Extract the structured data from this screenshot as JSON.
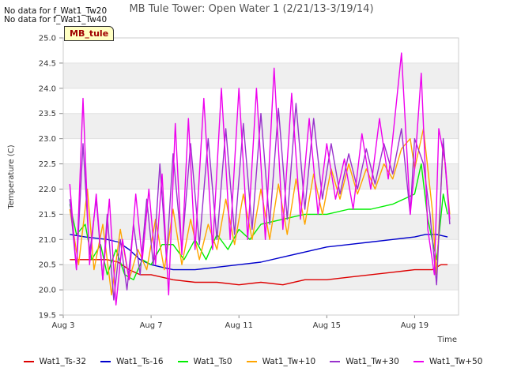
{
  "notes": [
    "No data for f_Wat1_Tw20",
    "No data for f_Wat1_Tw40"
  ],
  "site_label": "MB_tule",
  "chart_data": {
    "type": "line",
    "title": "MB Tule Tower: Open Water 1 (2/21/13-3/19/14)",
    "xlabel": "Time",
    "ylabel": "Temperature (C)",
    "xlim": [
      3,
      21
    ],
    "ylim": [
      19.5,
      25.0
    ],
    "x_ticks": [
      {
        "value": 3,
        "label": "Aug 3"
      },
      {
        "value": 7,
        "label": "Aug 7"
      },
      {
        "value": 11,
        "label": "Aug 11"
      },
      {
        "value": 15,
        "label": "Aug 15"
      },
      {
        "value": 19,
        "label": "Aug 19"
      }
    ],
    "y_ticks": [
      19.5,
      20.0,
      20.5,
      21.0,
      21.5,
      22.0,
      22.5,
      23.0,
      23.5,
      24.0,
      24.5,
      25.0
    ],
    "y_tick_labels": [
      "19.5",
      "20.0",
      "20.5",
      "21.0",
      "21.5",
      "22.0",
      "22.5",
      "23.0",
      "23.5",
      "24.0",
      "24.5",
      "25.0"
    ],
    "grid": true,
    "legend_position": "bottom",
    "series": [
      {
        "name": "Wat1_Ts-32",
        "color": "#dd0000",
        "x": [
          3.3,
          4.0,
          5.0,
          5.5,
          6.0,
          6.5,
          7.0,
          7.5,
          8.0,
          9.0,
          10.0,
          11.0,
          12.0,
          13.0,
          14.0,
          15.0,
          16.0,
          17.0,
          18.0,
          19.0,
          19.8,
          20.2,
          20.5
        ],
        "y": [
          20.6,
          20.6,
          20.6,
          20.55,
          20.4,
          20.3,
          20.3,
          20.25,
          20.2,
          20.15,
          20.15,
          20.1,
          20.15,
          20.1,
          20.2,
          20.2,
          20.25,
          20.3,
          20.35,
          20.4,
          20.4,
          20.5,
          20.5
        ]
      },
      {
        "name": "Wat1_Ts-16",
        "color": "#0000cc",
        "x": [
          3.3,
          4.0,
          5.0,
          5.5,
          6.0,
          6.5,
          7.0,
          7.5,
          8.0,
          9.0,
          10.0,
          11.0,
          12.0,
          13.0,
          14.0,
          15.0,
          16.0,
          17.0,
          18.0,
          19.0,
          19.5,
          20.0,
          20.5
        ],
        "y": [
          21.1,
          21.05,
          21.0,
          20.95,
          20.8,
          20.6,
          20.5,
          20.45,
          20.4,
          20.4,
          20.45,
          20.5,
          20.55,
          20.65,
          20.75,
          20.85,
          20.9,
          20.95,
          21.0,
          21.05,
          21.1,
          21.1,
          21.05
        ]
      },
      {
        "name": "Wat1_Ts0",
        "color": "#00ee00",
        "x": [
          3.3,
          3.6,
          4.0,
          4.3,
          4.7,
          5.0,
          5.4,
          5.8,
          6.2,
          6.6,
          7.0,
          7.5,
          8.0,
          8.5,
          9.0,
          9.5,
          10.0,
          10.5,
          11.0,
          11.5,
          12.0,
          13.0,
          14.0,
          15.0,
          16.0,
          17.0,
          18.0,
          18.5,
          19.0,
          19.3,
          19.6,
          20.0,
          20.3,
          20.5
        ],
        "y": [
          21.7,
          21.1,
          21.3,
          20.6,
          20.9,
          20.3,
          20.8,
          20.3,
          20.2,
          20.6,
          20.5,
          20.9,
          20.9,
          20.6,
          21.0,
          20.6,
          21.1,
          20.8,
          21.2,
          21.0,
          21.3,
          21.4,
          21.5,
          21.5,
          21.6,
          21.6,
          21.7,
          21.8,
          21.9,
          22.5,
          21.4,
          20.6,
          21.9,
          21.5
        ]
      },
      {
        "name": "Wat1_Tw+10",
        "color": "#ffa500",
        "x": [
          3.3,
          3.7,
          4.1,
          4.4,
          4.8,
          5.2,
          5.6,
          6.0,
          6.4,
          6.8,
          7.2,
          7.6,
          8.0,
          8.4,
          8.8,
          9.2,
          9.6,
          10.0,
          10.4,
          10.8,
          11.2,
          11.6,
          12.0,
          12.4,
          12.8,
          13.2,
          13.6,
          14.0,
          14.4,
          14.8,
          15.2,
          15.6,
          16.0,
          16.4,
          16.8,
          17.2,
          17.6,
          18.0,
          18.4,
          18.8,
          19.0,
          19.4,
          19.8,
          20.0,
          20.3,
          20.6
        ],
        "y": [
          21.6,
          20.5,
          22.0,
          20.4,
          21.3,
          19.9,
          21.2,
          20.2,
          20.8,
          20.4,
          21.4,
          20.4,
          21.6,
          20.5,
          21.4,
          20.6,
          21.3,
          20.8,
          21.8,
          20.9,
          21.9,
          21.0,
          22.0,
          21.0,
          22.1,
          21.1,
          22.2,
          21.3,
          22.3,
          21.5,
          22.4,
          21.8,
          22.5,
          21.9,
          22.4,
          22.0,
          22.5,
          22.2,
          22.8,
          23.0,
          22.4,
          23.2,
          21.6,
          20.3,
          22.9,
          21.5
        ]
      },
      {
        "name": "Wat1_Tw+30",
        "color": "#9932cc",
        "x": [
          3.3,
          3.6,
          3.9,
          4.2,
          4.5,
          4.8,
          5.0,
          5.3,
          5.6,
          5.9,
          6.2,
          6.5,
          6.8,
          7.1,
          7.4,
          7.7,
          8.0,
          8.4,
          8.8,
          9.2,
          9.6,
          10.0,
          10.4,
          10.8,
          11.2,
          11.6,
          12.0,
          12.4,
          12.8,
          13.2,
          13.6,
          14.0,
          14.4,
          14.8,
          15.2,
          15.6,
          16.0,
          16.4,
          16.8,
          17.2,
          17.6,
          18.0,
          18.4,
          18.8,
          19.0,
          19.4,
          19.7,
          20.0,
          20.3,
          20.6
        ],
        "y": [
          21.8,
          20.4,
          22.9,
          20.7,
          21.8,
          20.2,
          21.5,
          19.8,
          21.0,
          20.0,
          21.3,
          20.3,
          21.8,
          20.5,
          22.5,
          20.6,
          22.7,
          20.8,
          22.9,
          20.9,
          23.0,
          21.0,
          23.2,
          21.1,
          23.3,
          21.2,
          23.5,
          21.3,
          23.6,
          21.4,
          23.7,
          21.6,
          23.4,
          21.8,
          22.9,
          21.9,
          22.7,
          22.0,
          22.8,
          22.1,
          22.9,
          22.3,
          23.2,
          21.5,
          23.0,
          22.5,
          21.5,
          20.1,
          23.0,
          21.3
        ]
      },
      {
        "name": "Wat1_Tw+50",
        "color": "#ee00ee",
        "x": [
          3.3,
          3.6,
          3.9,
          4.2,
          4.5,
          4.8,
          5.1,
          5.4,
          5.7,
          6.0,
          6.3,
          6.6,
          6.9,
          7.2,
          7.5,
          7.8,
          8.1,
          8.4,
          8.7,
          9.0,
          9.4,
          9.8,
          10.2,
          10.6,
          11.0,
          11.4,
          11.8,
          12.2,
          12.6,
          13.0,
          13.4,
          13.8,
          14.2,
          14.6,
          15.0,
          15.4,
          15.8,
          16.2,
          16.6,
          17.0,
          17.4,
          17.8,
          18.0,
          18.4,
          18.8,
          19.0,
          19.3,
          19.6,
          19.9,
          20.1,
          20.4,
          20.6
        ],
        "y": [
          22.1,
          20.4,
          23.8,
          20.5,
          21.9,
          20.2,
          21.8,
          19.7,
          21.0,
          20.2,
          21.9,
          20.6,
          22.0,
          20.5,
          22.3,
          19.9,
          23.3,
          20.7,
          23.4,
          20.8,
          23.8,
          20.8,
          24.0,
          21.0,
          24.0,
          21.0,
          24.0,
          21.0,
          24.4,
          21.2,
          23.9,
          21.4,
          23.4,
          21.5,
          22.9,
          21.8,
          22.6,
          21.6,
          23.1,
          22.0,
          23.4,
          22.2,
          23.0,
          24.7,
          21.5,
          22.4,
          24.3,
          21.2,
          20.3,
          23.2,
          22.5,
          21.4
        ]
      }
    ]
  }
}
